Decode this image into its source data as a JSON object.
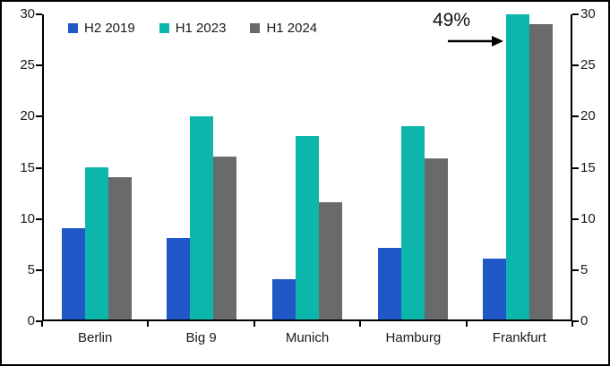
{
  "chart_data": {
    "type": "bar",
    "title": "",
    "categories": [
      "Berlin",
      "Big 9",
      "Munich",
      "Hamburg",
      "Frankfurt"
    ],
    "series": [
      {
        "name": "H2 2019",
        "color": "#2058C8",
        "values": [
          9,
          8,
          4,
          7,
          6
        ]
      },
      {
        "name": "H1 2023",
        "color": "#0DB6AB",
        "values": [
          15,
          20,
          18,
          19,
          30
        ]
      },
      {
        "name": "H1 2024",
        "color": "#696A6C",
        "values": [
          14,
          16,
          11.5,
          15.8,
          29
        ]
      }
    ],
    "xlabel": "",
    "ylabel": "",
    "ylim": [
      0,
      30
    ],
    "yticks": [
      0,
      5,
      10,
      15,
      20,
      25,
      30
    ],
    "y_axis_sides": [
      "left",
      "right"
    ],
    "grid": false,
    "legend_position": "top-center",
    "annotation": {
      "text": "49%",
      "points_to": "Frankfurt H1 2023 bar",
      "arrow_direction": "right"
    },
    "frame_color": "#000000",
    "background_color": "#ffffff"
  }
}
